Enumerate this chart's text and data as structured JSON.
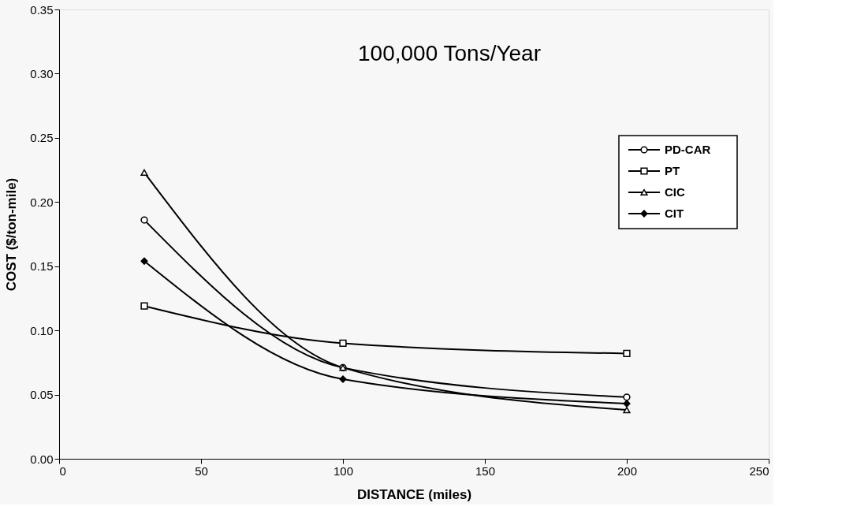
{
  "chart_data": {
    "type": "line",
    "title": "100,000  Tons/Year",
    "xlabel": "DISTANCE (miles)",
    "ylabel": "COST ($/ton-mile)",
    "x": [
      30,
      100,
      200
    ],
    "series": [
      {
        "name": "PD-CAR",
        "color": "#000000",
        "marker": "circle",
        "values": [
          0.186,
          0.071,
          0.048
        ]
      },
      {
        "name": "PT",
        "color": "#000000",
        "marker": "square",
        "values": [
          0.119,
          0.09,
          0.082
        ]
      },
      {
        "name": "CIC",
        "color": "#000000",
        "marker": "triangle",
        "values": [
          0.223,
          0.071,
          0.038
        ]
      },
      {
        "name": "CIT",
        "color": "#000000",
        "marker": "diamond",
        "values": [
          0.154,
          0.062,
          0.043
        ]
      }
    ],
    "xlim": [
      0,
      250
    ],
    "xticks": [
      0,
      50,
      100,
      150,
      200,
      250
    ],
    "ylim": [
      0,
      0.35
    ],
    "yticks": [
      {
        "value": 0,
        "label": "0.00"
      },
      {
        "value": 0.05,
        "label": "0.05"
      },
      {
        "value": 0.1,
        "label": "0.10"
      },
      {
        "value": 0.15,
        "label": "0.15"
      },
      {
        "value": 0.2,
        "label": "0.20"
      },
      {
        "value": 0.25,
        "label": "0.25"
      },
      {
        "value": 0.3,
        "label": "0.30"
      },
      {
        "value": 0.35,
        "label": "0.35"
      }
    ],
    "grid": false,
    "legend": "right",
    "line_style": "solid"
  }
}
